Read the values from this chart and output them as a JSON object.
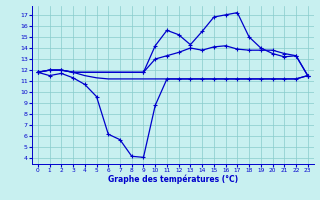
{
  "bg_color": "#c8f0f0",
  "line_color": "#0000cc",
  "grid_color": "#88cccc",
  "xlabel": "Graphe des températures (°C)",
  "ylim": [
    3.5,
    17.8
  ],
  "xlim": [
    -0.5,
    23.5
  ],
  "y_ticks": [
    4,
    5,
    6,
    7,
    8,
    9,
    10,
    11,
    12,
    13,
    14,
    15,
    16,
    17
  ],
  "x_ticks": [
    0,
    1,
    2,
    3,
    4,
    5,
    6,
    7,
    8,
    9,
    10,
    11,
    12,
    13,
    14,
    15,
    16,
    17,
    18,
    19,
    20,
    21,
    22,
    23
  ],
  "line_flat_x": [
    0,
    1,
    2,
    3,
    4,
    5,
    6,
    7,
    8,
    9,
    10,
    11,
    12,
    13,
    14,
    15,
    16,
    17,
    18,
    19,
    20,
    21,
    22,
    23
  ],
  "line_flat_y": [
    11.8,
    12.0,
    12.0,
    11.8,
    11.5,
    11.3,
    11.2,
    11.2,
    11.2,
    11.2,
    11.2,
    11.2,
    11.2,
    11.2,
    11.2,
    11.2,
    11.2,
    11.2,
    11.2,
    11.2,
    11.2,
    11.2,
    11.2,
    11.5
  ],
  "line_dip_x": [
    0,
    1,
    2,
    3,
    4,
    5,
    6,
    7,
    8,
    9,
    10,
    11,
    12,
    13,
    14,
    15,
    16,
    17,
    18,
    19,
    20,
    21,
    22,
    23
  ],
  "line_dip_y": [
    11.8,
    11.5,
    11.7,
    11.3,
    10.7,
    9.6,
    6.2,
    5.7,
    4.2,
    4.1,
    8.8,
    11.2,
    11.2,
    11.2,
    11.2,
    11.2,
    11.2,
    11.2,
    11.2,
    11.2,
    11.2,
    11.2,
    11.2,
    11.5
  ],
  "line_mid_x": [
    0,
    1,
    2,
    3,
    9,
    10,
    11,
    12,
    13,
    14,
    15,
    16,
    17,
    18,
    19,
    20,
    21,
    22,
    23
  ],
  "line_mid_y": [
    11.8,
    12.0,
    12.0,
    11.8,
    11.8,
    13.0,
    13.3,
    13.6,
    14.0,
    13.8,
    14.1,
    14.2,
    13.9,
    13.8,
    13.8,
    13.8,
    13.5,
    13.3,
    11.5
  ],
  "line_top_x": [
    0,
    1,
    2,
    3,
    9,
    10,
    11,
    12,
    13,
    14,
    15,
    16,
    17,
    18,
    19,
    20,
    21,
    22,
    23
  ],
  "line_top_y": [
    11.8,
    12.0,
    12.0,
    11.8,
    11.8,
    14.2,
    15.6,
    15.2,
    14.3,
    15.5,
    16.8,
    17.0,
    17.2,
    15.0,
    14.0,
    13.5,
    13.2,
    13.3,
    11.5
  ]
}
